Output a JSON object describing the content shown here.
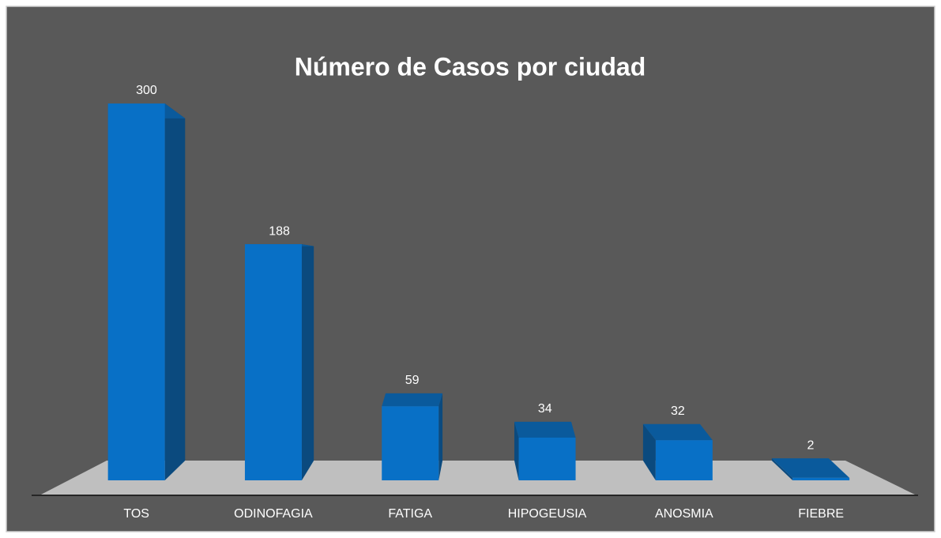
{
  "chart_data": {
    "type": "bar",
    "title": "Número de Casos por ciudad",
    "categories": [
      "TOS",
      "ODINOFAGIA",
      "FATIGA",
      "HIPOGEUSIA",
      "ANOSMIA",
      "FIEBRE"
    ],
    "values": [
      300,
      188,
      59,
      34,
      32,
      2
    ],
    "color": "#0870c6"
  }
}
